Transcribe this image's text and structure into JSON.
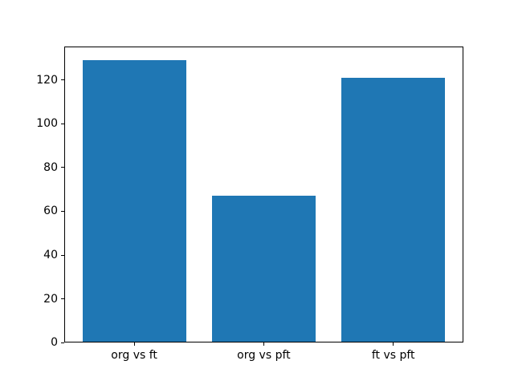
{
  "chart_data": {
    "type": "bar",
    "title": "",
    "xlabel": "",
    "ylabel": "",
    "categories": [
      "org vs ft",
      "org vs pft",
      "ft vs pft"
    ],
    "values": [
      129,
      67,
      121
    ],
    "yticks": [
      0,
      20,
      40,
      60,
      80,
      100,
      120
    ],
    "ylim": [
      0,
      135.45
    ],
    "bar_width_fraction": 0.8,
    "bar_color": "#1f77b4",
    "axis_color": "#000000",
    "background_color": "#ffffff",
    "grid": false,
    "legend": null
  }
}
